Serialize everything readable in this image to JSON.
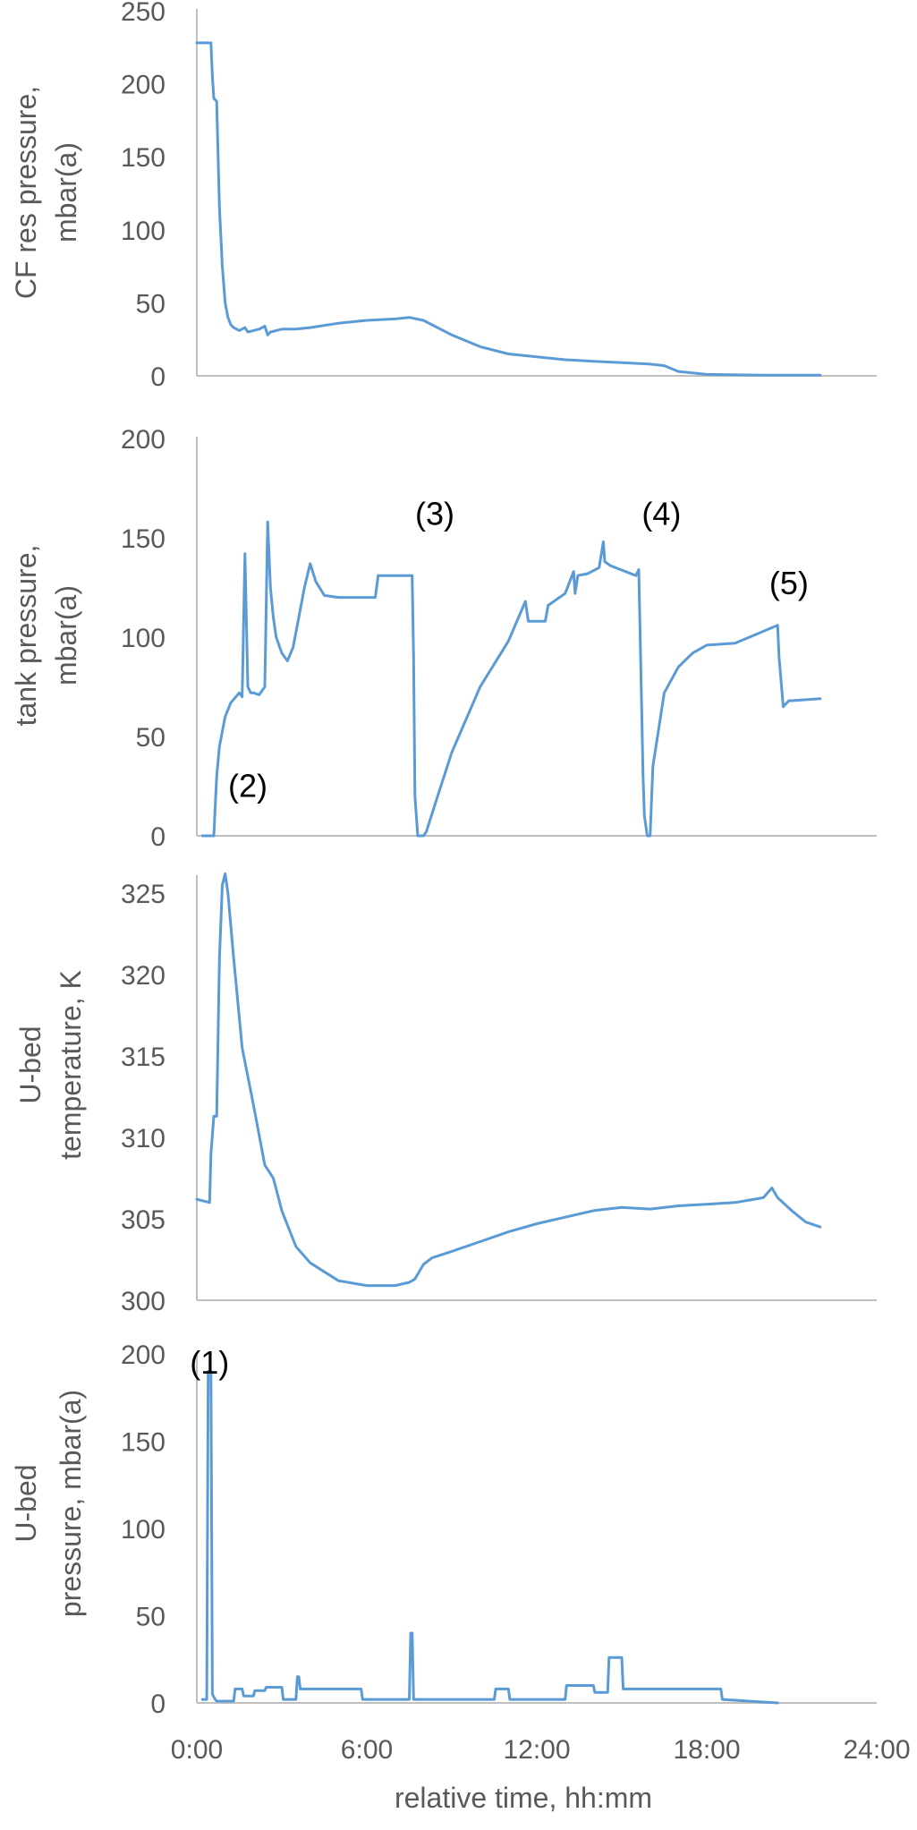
{
  "chart_data": [
    {
      "type": "line",
      "ylabel": [
        "CF res pressure,",
        "mbar(a)"
      ],
      "ylim": [
        0,
        250
      ],
      "yticks": [
        0,
        50,
        100,
        150,
        200,
        250
      ],
      "xlim": [
        0,
        24
      ],
      "grid": false,
      "color": "#5b9bd5",
      "annotations": [],
      "series": [
        {
          "x": [
            0,
            0.5,
            0.55,
            0.6,
            0.7,
            0.75,
            0.8,
            0.9,
            1.0,
            1.1,
            1.2,
            1.3,
            1.5,
            1.7,
            1.8,
            2.0,
            2.2,
            2.4,
            2.5,
            2.6,
            2.8,
            3.0,
            3.5,
            4.0,
            5.0,
            6.0,
            7.0,
            7.5,
            8.0,
            9.0,
            10.0,
            11.0,
            12.0,
            13.0,
            14.0,
            15.0,
            16.0,
            16.5,
            17.0,
            18.0,
            20.0,
            22.0
          ],
          "y": [
            228,
            228,
            205,
            190,
            188,
            150,
            115,
            75,
            50,
            40,
            35,
            33,
            31,
            33,
            30,
            31,
            32,
            34,
            28,
            30,
            31,
            32,
            32,
            33,
            36,
            38,
            39,
            40,
            38,
            28,
            20,
            15,
            13,
            11,
            10,
            9,
            8,
            7,
            3,
            1,
            0.5,
            0.5
          ]
        }
      ]
    },
    {
      "type": "line",
      "ylabel": [
        "tank pressure,",
        "mbar(a)"
      ],
      "ylim": [
        0,
        200
      ],
      "yticks": [
        0,
        50,
        100,
        150,
        200
      ],
      "xlim": [
        0,
        24
      ],
      "grid": false,
      "color": "#5b9bd5",
      "annotations": [
        {
          "text": "(2)",
          "x": 1.8,
          "y": 25
        },
        {
          "text": "(3)",
          "x": 8.4,
          "y": 162
        },
        {
          "text": "(4)",
          "x": 16.4,
          "y": 162
        },
        {
          "text": "(5)",
          "x": 20.9,
          "y": 127
        }
      ],
      "series": [
        {
          "x": [
            0.2,
            0.6,
            0.7,
            0.8,
            1.0,
            1.2,
            1.5,
            1.6,
            1.7,
            1.8,
            1.9,
            2.0,
            2.2,
            2.4,
            2.5,
            2.6,
            2.7,
            2.8,
            3.0,
            3.2,
            3.4,
            3.6,
            3.8,
            4.0,
            4.2,
            4.5,
            5.0,
            5.5,
            6.3,
            6.4,
            7.6,
            7.65,
            7.7,
            7.8,
            8.0,
            8.1,
            8.5,
            9.0,
            10.0,
            11.0,
            11.6,
            11.7,
            12.3,
            12.4,
            13.0,
            13.3,
            13.35,
            13.45,
            13.8,
            14.2,
            14.35,
            14.4,
            14.6,
            15.5,
            15.6,
            15.65,
            15.75,
            15.8,
            15.9,
            16.0,
            16.1,
            16.5,
            17.0,
            17.5,
            18.0,
            19.0,
            20.5,
            20.55,
            20.7,
            20.9,
            21.0,
            22.0
          ],
          "y": [
            0,
            0,
            30,
            45,
            60,
            67,
            72,
            70,
            142,
            75,
            72,
            72,
            71,
            75,
            158,
            125,
            110,
            100,
            92,
            88,
            95,
            110,
            125,
            137,
            128,
            121,
            120,
            120,
            120,
            131,
            131,
            90,
            20,
            0,
            0,
            2,
            20,
            42,
            75,
            98,
            118,
            108,
            108,
            116,
            122,
            133,
            122,
            131,
            132,
            135,
            148,
            138,
            136,
            131,
            134,
            100,
            30,
            10,
            0,
            0,
            35,
            72,
            85,
            92,
            96,
            97,
            106,
            90,
            65,
            68,
            68,
            69
          ]
        }
      ]
    },
    {
      "type": "line",
      "ylabel": [
        "U-bed",
        "temperature, K"
      ],
      "ylim": [
        300,
        326
      ],
      "yticks": [
        300,
        305,
        310,
        315,
        320,
        325
      ],
      "xlim": [
        0,
        24
      ],
      "grid": false,
      "color": "#5b9bd5",
      "annotations": [],
      "series": [
        {
          "x": [
            0,
            0.45,
            0.5,
            0.6,
            0.7,
            0.8,
            0.9,
            1.0,
            1.1,
            1.3,
            1.6,
            2.0,
            2.4,
            2.7,
            3.0,
            3.5,
            4.0,
            5.0,
            6.0,
            7.0,
            7.5,
            7.7,
            8.0,
            8.3,
            9.0,
            10.0,
            11.0,
            12.0,
            13.0,
            14.0,
            15.0,
            16.0,
            17.0,
            18.0,
            19.0,
            20.0,
            20.3,
            20.5,
            21.0,
            21.5,
            22.0
          ],
          "y": [
            306.2,
            306.0,
            309,
            311.3,
            311.3,
            321,
            325.5,
            326.2,
            325,
            321,
            315.5,
            312,
            308.3,
            307.5,
            305.5,
            303.3,
            302.3,
            301.2,
            300.9,
            300.9,
            301.1,
            301.3,
            302.2,
            302.6,
            303.0,
            303.6,
            304.2,
            304.7,
            305.1,
            305.5,
            305.7,
            305.6,
            305.8,
            305.9,
            306.0,
            306.3,
            306.9,
            306.3,
            305.5,
            304.8,
            304.5
          ]
        }
      ]
    },
    {
      "type": "line",
      "ylabel": [
        "U-bed",
        "pressure,  mbar(a)"
      ],
      "ylim": [
        0,
        200
      ],
      "yticks": [
        0,
        50,
        100,
        150,
        200
      ],
      "xlim": [
        0,
        24
      ],
      "xticks": [
        "0:00",
        "6:00",
        "12:00",
        "18:00",
        "24:00"
      ],
      "xlabel": "relative time, hh:mm",
      "grid": false,
      "color": "#5b9bd5",
      "annotations": [
        {
          "text": "(1)",
          "x": 0.45,
          "y": 195
        }
      ],
      "series": [
        {
          "x": [
            0.2,
            0.35,
            0.4,
            0.5,
            0.55,
            0.65,
            0.7,
            1.3,
            1.35,
            1.6,
            1.65,
            2.0,
            2.05,
            2.4,
            2.45,
            3.0,
            3.05,
            3.5,
            3.55,
            3.6,
            3.65,
            5.8,
            5.85,
            7.5,
            7.55,
            7.6,
            7.65,
            10.5,
            10.55,
            11.0,
            11.05,
            13.0,
            13.05,
            14.0,
            14.05,
            14.5,
            14.55,
            15.0,
            15.05,
            18.5,
            18.55,
            20.5
          ],
          "y": [
            2,
            2,
            190,
            190,
            5,
            2,
            1,
            1,
            8,
            8,
            4,
            4,
            7,
            7,
            9,
            9,
            2,
            2,
            15,
            15,
            8,
            8,
            2,
            2,
            40,
            40,
            2,
            2,
            8,
            8,
            2,
            2,
            10,
            10,
            6,
            6,
            26,
            26,
            8,
            8,
            2,
            0
          ]
        }
      ]
    }
  ]
}
